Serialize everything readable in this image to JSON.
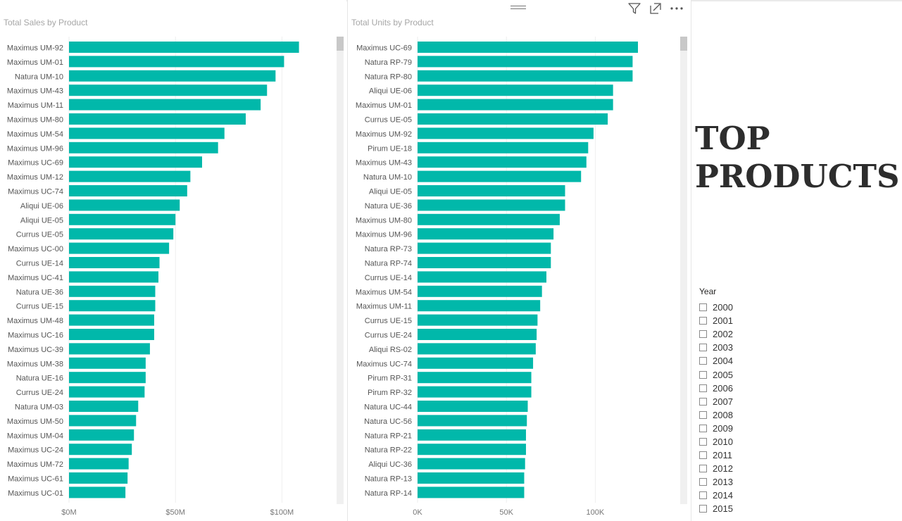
{
  "sales_chart": {
    "title": "Total Sales by Product",
    "chart_data": {
      "type": "bar",
      "orientation": "horizontal",
      "title": "Total Sales by Product",
      "categories": [
        "Maximus UM-92",
        "Maximus UM-01",
        "Natura UM-10",
        "Maximus UM-43",
        "Maximus UM-11",
        "Maximus UM-80",
        "Maximus UM-54",
        "Maximus UM-96",
        "Maximus UC-69",
        "Maximus UM-12",
        "Maximus UC-74",
        "Aliqui UE-06",
        "Aliqui UE-05",
        "Currus UE-05",
        "Maximus UC-00",
        "Currus UE-14",
        "Maximus UC-41",
        "Natura UE-36",
        "Currus UE-15",
        "Maximus UM-48",
        "Maximus UC-16",
        "Maximus UC-39",
        "Maximus UM-38",
        "Natura UE-16",
        "Currus UE-24",
        "Natura UM-03",
        "Maximus UM-50",
        "Maximus UM-04",
        "Maximus UC-24",
        "Maximus UM-72",
        "Maximus UC-61",
        "Maximus UC-01"
      ],
      "values": [
        108,
        101,
        97,
        93,
        90,
        83,
        73,
        70,
        62.5,
        57,
        55.5,
        52,
        50,
        49,
        47,
        42.5,
        42,
        40.5,
        40.5,
        40,
        40,
        38,
        36,
        36,
        35.5,
        32.5,
        31.5,
        30.5,
        29.5,
        28,
        27.5,
        26.5
      ],
      "x_ticks": [
        "$0M",
        "$50M",
        "$100M"
      ],
      "xlim": [
        0,
        125
      ],
      "unit": "$M",
      "color": "#01B8AA",
      "grid": true
    }
  },
  "units_chart": {
    "title": "Total Units by Product",
    "chart_data": {
      "type": "bar",
      "orientation": "horizontal",
      "title": "Total Units by Product",
      "categories": [
        "Maximus UC-69",
        "Natura RP-79",
        "Natura RP-80",
        "Aliqui UE-06",
        "Maximus UM-01",
        "Currus UE-05",
        "Maximus UM-92",
        "Pirum UE-18",
        "Maximus UM-43",
        "Natura UM-10",
        "Aliqui UE-05",
        "Natura UE-36",
        "Maximus UM-80",
        "Maximus UM-96",
        "Natura RP-73",
        "Natura RP-74",
        "Currus UE-14",
        "Maximus UM-54",
        "Maximus UM-11",
        "Currus UE-15",
        "Currus UE-24",
        "Aliqui RS-02",
        "Maximus UC-74",
        "Pirum RP-31",
        "Pirum RP-32",
        "Natura UC-44",
        "Natura UC-56",
        "Natura RP-21",
        "Natura RP-22",
        "Aliqui UC-36",
        "Natura RP-13",
        "Natura RP-14"
      ],
      "values": [
        124,
        121,
        121,
        110,
        110,
        107,
        99,
        96,
        95,
        92,
        83,
        83,
        80,
        76.5,
        75,
        75,
        72.5,
        70,
        69,
        67.5,
        67,
        66.5,
        65,
        64,
        64,
        62,
        61.5,
        61,
        61,
        60.5,
        60,
        60
      ],
      "x_ticks": [
        "0K",
        "50K",
        "100K"
      ],
      "xlim": [
        0,
        145
      ],
      "unit": "K",
      "color": "#01B8AA",
      "grid": true
    }
  },
  "header_icons": [
    "drag-handle-icon",
    "filter-icon",
    "focus-mode-icon",
    "more-options-icon"
  ],
  "heading": "TOP PRODUCTS",
  "year_slicer": {
    "label": "Year",
    "items": [
      "2000",
      "2001",
      "2002",
      "2003",
      "2004",
      "2005",
      "2006",
      "2007",
      "2008",
      "2009",
      "2010",
      "2011",
      "2012",
      "2013",
      "2014",
      "2015"
    ]
  }
}
